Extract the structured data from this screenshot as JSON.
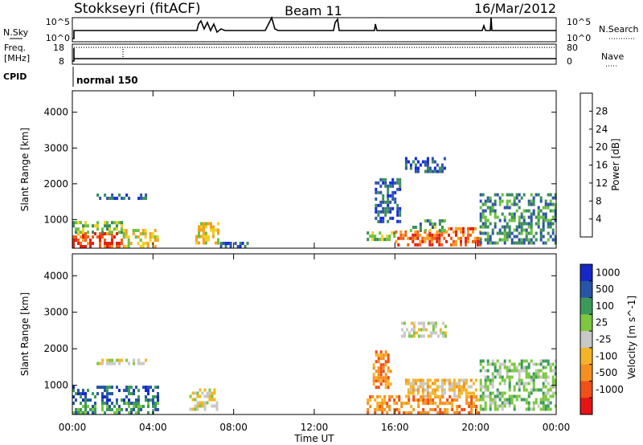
{
  "header": {
    "title": "Stokkseyri (fitACF)",
    "beam": "Beam 11",
    "date": "16/Mar/2012"
  },
  "strips": {
    "nsky_label": "N.Sky",
    "nsky_ticks": [
      "10^5",
      "10^0"
    ],
    "nsearch_label": "N.Search",
    "nsearch_ticks": [
      "10^5",
      "10^0"
    ],
    "freq_label": "Freq.",
    "freq_unit": "[MHz]",
    "freq_ticks": [
      "18",
      "8"
    ],
    "nave_label": "Nave",
    "nave_ticks": [
      "80",
      "0"
    ],
    "cpid_label": "CPID",
    "cpid_value": "normal 150"
  },
  "colors": {
    "power": [
      "#1428e6",
      "#2e54a8",
      "#3a8c5a",
      "#6cc040",
      "#f0d020",
      "#f5a020",
      "#f06018",
      "#e62010"
    ],
    "velocity": [
      "#e61414",
      "#f05018",
      "#f59020",
      "#f5b428",
      "#c8c8c8",
      "#7cc840",
      "#3a9a5a",
      "#2854a8",
      "#1428c8"
    ]
  },
  "chart_data": [
    {
      "type": "heatmap",
      "name": "Power",
      "xlabel": "",
      "ylabel": "Slant Range [km]",
      "x_ticks": [
        "00:00",
        "04:00",
        "08:00",
        "12:00",
        "16:00",
        "20:00",
        "00:00"
      ],
      "y_ticks": [
        1000,
        2000,
        3000,
        4000
      ],
      "ylim": [
        200,
        4600
      ],
      "colorbar_label": "Power [dB]",
      "colorbar_ticks": [
        4,
        8,
        12,
        16,
        20,
        24,
        28
      ],
      "colorbar_range": [
        0,
        32
      ],
      "patches": [
        {
          "t0": 0.0,
          "t1": 2.5,
          "r0": 200,
          "r1": 600,
          "level": 28
        },
        {
          "t0": 0.0,
          "t1": 2.5,
          "r0": 600,
          "r1": 900,
          "level": 14
        },
        {
          "t0": 2.5,
          "t1": 4.2,
          "r0": 200,
          "r1": 650,
          "level": 18
        },
        {
          "t0": 1.2,
          "t1": 3.6,
          "r0": 1550,
          "r1": 1650,
          "level": 6
        },
        {
          "t0": 6.1,
          "t1": 7.2,
          "r0": 300,
          "r1": 850,
          "level": 18
        },
        {
          "t0": 7.2,
          "t1": 8.8,
          "r0": 200,
          "r1": 300,
          "level": 6
        },
        {
          "t0": 14.6,
          "t1": 16.0,
          "r0": 400,
          "r1": 650,
          "level": 14
        },
        {
          "t0": 16.0,
          "t1": 18.5,
          "r0": 250,
          "r1": 650,
          "level": 26
        },
        {
          "t0": 16.5,
          "t1": 18.5,
          "r0": 650,
          "r1": 950,
          "level": 12
        },
        {
          "t0": 18.5,
          "t1": 20.2,
          "r0": 250,
          "r1": 700,
          "level": 26
        },
        {
          "t0": 20.2,
          "t1": 24.0,
          "r0": 300,
          "r1": 1700,
          "level": 10
        },
        {
          "t0": 15.0,
          "t1": 16.2,
          "r0": 900,
          "r1": 2100,
          "level": 6
        },
        {
          "t0": 16.5,
          "t1": 18.5,
          "r0": 2300,
          "r1": 2700,
          "level": 5
        }
      ]
    },
    {
      "type": "heatmap",
      "name": "Velocity",
      "xlabel": "Time UT",
      "ylabel": "Slant Range [km]",
      "x_ticks": [
        "00:00",
        "04:00",
        "08:00",
        "12:00",
        "16:00",
        "20:00",
        "00:00"
      ],
      "y_ticks": [
        1000,
        2000,
        3000,
        4000
      ],
      "ylim": [
        200,
        4600
      ],
      "colorbar_label": "Velocity [m s^-1]",
      "colorbar_ticks": [
        "1000",
        "500",
        "100",
        "25",
        "-25",
        "-100",
        "-500",
        "-1000"
      ],
      "patches": [
        {
          "t0": 0.0,
          "t1": 4.2,
          "r0": 200,
          "r1": 550,
          "level": 2
        },
        {
          "t0": 0.0,
          "t1": 4.2,
          "r0": 550,
          "r1": 950,
          "level": 3
        },
        {
          "t0": 1.2,
          "t1": 3.6,
          "r0": 1550,
          "r1": 1650,
          "level": 0
        },
        {
          "t0": 5.8,
          "t1": 7.2,
          "r0": 300,
          "r1": 900,
          "level": 0
        },
        {
          "t0": 14.6,
          "t1": 20.2,
          "r0": 200,
          "r1": 650,
          "level": -2
        },
        {
          "t0": 16.5,
          "t1": 20.0,
          "r0": 650,
          "r1": 1100,
          "level": -1
        },
        {
          "t0": 20.2,
          "t1": 24.0,
          "r0": 300,
          "r1": 1700,
          "level": 1
        },
        {
          "t0": 16.3,
          "t1": 18.5,
          "r0": 2300,
          "r1": 2700,
          "level": 0
        },
        {
          "t0": 14.9,
          "t1": 15.8,
          "r0": 900,
          "r1": 1900,
          "level": -2
        }
      ]
    }
  ]
}
